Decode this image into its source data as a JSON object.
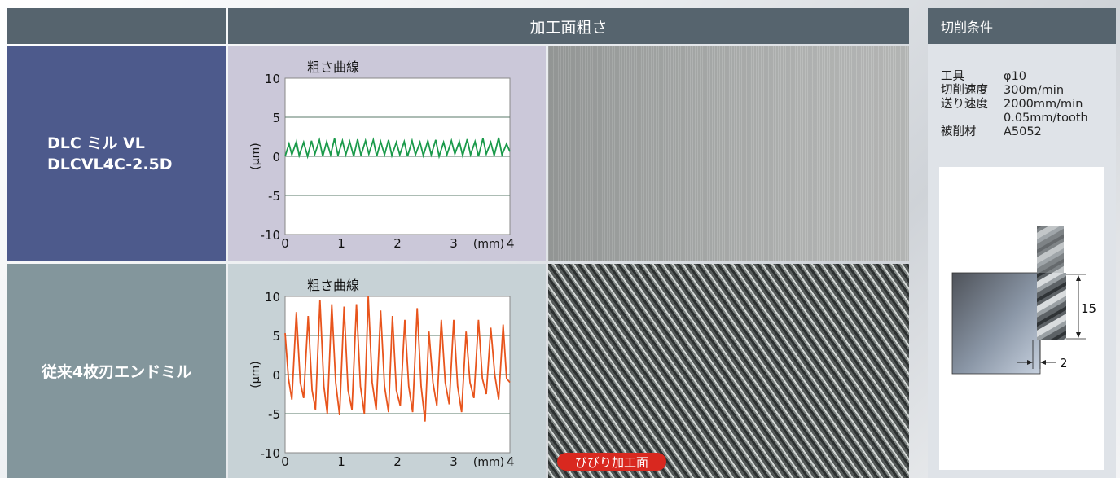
{
  "header": {
    "title": "加工面粗さ"
  },
  "rows": [
    {
      "label_lines": [
        "DLC ミル VL",
        "DLCVL4C-2.5D"
      ]
    },
    {
      "label_lines": [
        "従来4枚刃エンドミル"
      ]
    }
  ],
  "chatter_badge": "びびり加工面",
  "sidebar": {
    "title": "切削条件",
    "conditions": [
      {
        "key": "工具",
        "value": "φ10"
      },
      {
        "key": "切削速度",
        "value": "300m/min"
      },
      {
        "key": "送り速度",
        "value": "2000mm/min"
      },
      {
        "key": "",
        "value": "0.05mm/tooth"
      },
      {
        "key": "被削材",
        "value": "A5052"
      }
    ],
    "diagram": {
      "depth_label": "15",
      "width_label": "2"
    }
  },
  "colors": {
    "dlc_line": "#1a9a4a",
    "conv_line": "#e8541c"
  },
  "chart_data": [
    {
      "type": "line",
      "title": "粗さ曲線",
      "xlabel": "(mm)",
      "ylabel": "(μm)",
      "xlim": [
        0,
        4
      ],
      "ylim": [
        -10,
        10
      ],
      "x_ticks": [
        "0",
        "1",
        "2",
        "3",
        "4"
      ],
      "y_ticks": [
        "10",
        "5",
        "0",
        "-5",
        "-10"
      ],
      "grid": true,
      "series": [
        {
          "values": [
            [
              0.0,
              0.0
            ],
            [
              0.07,
              1.6
            ],
            [
              0.12,
              0.2
            ],
            [
              0.2,
              1.9
            ],
            [
              0.25,
              0.1
            ],
            [
              0.33,
              1.8
            ],
            [
              0.4,
              0.0
            ],
            [
              0.47,
              2.0
            ],
            [
              0.53,
              0.3
            ],
            [
              0.61,
              2.1
            ],
            [
              0.67,
              0.0
            ],
            [
              0.74,
              1.9
            ],
            [
              0.81,
              0.2
            ],
            [
              0.88,
              2.3
            ],
            [
              0.94,
              0.1
            ],
            [
              1.02,
              2.0
            ],
            [
              1.08,
              0.2
            ],
            [
              1.15,
              1.9
            ],
            [
              1.22,
              0.0
            ],
            [
              1.29,
              2.2
            ],
            [
              1.35,
              0.1
            ],
            [
              1.43,
              2.0
            ],
            [
              1.49,
              0.3
            ],
            [
              1.57,
              2.1
            ],
            [
              1.63,
              0.0
            ],
            [
              1.7,
              1.9
            ],
            [
              1.77,
              0.2
            ],
            [
              1.84,
              2.1
            ],
            [
              1.9,
              0.1
            ],
            [
              1.98,
              1.8
            ],
            [
              2.04,
              0.2
            ],
            [
              2.12,
              1.9
            ],
            [
              2.18,
              0.0
            ],
            [
              2.26,
              2.0
            ],
            [
              2.32,
              0.2
            ],
            [
              2.4,
              1.8
            ],
            [
              2.46,
              0.1
            ],
            [
              2.54,
              2.0
            ],
            [
              2.6,
              0.2
            ],
            [
              2.68,
              2.1
            ],
            [
              2.74,
              0.0
            ],
            [
              2.82,
              1.8
            ],
            [
              2.88,
              0.2
            ],
            [
              2.96,
              2.0
            ],
            [
              3.02,
              0.3
            ],
            [
              3.1,
              1.9
            ],
            [
              3.16,
              0.1
            ],
            [
              3.24,
              2.2
            ],
            [
              3.3,
              0.2
            ],
            [
              3.38,
              1.9
            ],
            [
              3.44,
              0.0
            ],
            [
              3.52,
              2.3
            ],
            [
              3.58,
              0.3
            ],
            [
              3.66,
              1.8
            ],
            [
              3.72,
              0.1
            ],
            [
              3.8,
              2.4
            ],
            [
              3.86,
              0.2
            ],
            [
              3.94,
              1.6
            ],
            [
              4.0,
              0.6
            ]
          ]
        }
      ]
    },
    {
      "type": "line",
      "title": "粗さ曲線",
      "xlabel": "(mm)",
      "ylabel": "(μm)",
      "xlim": [
        0,
        4
      ],
      "ylim": [
        -10,
        10
      ],
      "x_ticks": [
        "0",
        "1",
        "2",
        "3",
        "4"
      ],
      "y_ticks": [
        "10",
        "5",
        "0",
        "-5",
        "-10"
      ],
      "grid": true,
      "series": [
        {
          "values": [
            [
              0.0,
              5.3
            ],
            [
              0.06,
              -0.5
            ],
            [
              0.12,
              -3.2
            ],
            [
              0.2,
              8.0
            ],
            [
              0.27,
              -1.0
            ],
            [
              0.33,
              -3.0
            ],
            [
              0.41,
              7.5
            ],
            [
              0.48,
              -2.0
            ],
            [
              0.54,
              -4.5
            ],
            [
              0.62,
              9.5
            ],
            [
              0.69,
              -1.5
            ],
            [
              0.75,
              -5.0
            ],
            [
              0.83,
              9.0
            ],
            [
              0.9,
              -1.0
            ],
            [
              0.97,
              -5.2
            ],
            [
              1.05,
              8.7
            ],
            [
              1.12,
              -2.0
            ],
            [
              1.19,
              -4.5
            ],
            [
              1.27,
              9.0
            ],
            [
              1.34,
              -1.5
            ],
            [
              1.41,
              -5.0
            ],
            [
              1.48,
              10.0
            ],
            [
              1.55,
              -1.0
            ],
            [
              1.62,
              -4.5
            ],
            [
              1.7,
              8.2
            ],
            [
              1.77,
              -1.5
            ],
            [
              1.84,
              -4.8
            ],
            [
              1.91,
              7.5
            ],
            [
              1.98,
              -2.0
            ],
            [
              2.05,
              -4.0
            ],
            [
              2.13,
              7.0
            ],
            [
              2.2,
              -1.5
            ],
            [
              2.27,
              -4.8
            ],
            [
              2.35,
              8.5
            ],
            [
              2.42,
              -1.5
            ],
            [
              2.49,
              -6.0
            ],
            [
              2.56,
              5.5
            ],
            [
              2.63,
              -1.0
            ],
            [
              2.7,
              -4.0
            ],
            [
              2.78,
              7.0
            ],
            [
              2.85,
              -1.0
            ],
            [
              2.92,
              -3.8
            ],
            [
              3.0,
              7.0
            ],
            [
              3.07,
              -1.5
            ],
            [
              3.14,
              -4.8
            ],
            [
              3.22,
              5.5
            ],
            [
              3.29,
              -1.0
            ],
            [
              3.36,
              -3.0
            ],
            [
              3.44,
              7.0
            ],
            [
              3.51,
              -0.5
            ],
            [
              3.58,
              -2.5
            ],
            [
              3.66,
              6.0
            ],
            [
              3.73,
              0.0
            ],
            [
              3.8,
              -3.2
            ],
            [
              3.88,
              6.4
            ],
            [
              3.94,
              -0.5
            ],
            [
              4.0,
              -1.0
            ]
          ]
        }
      ]
    }
  ]
}
